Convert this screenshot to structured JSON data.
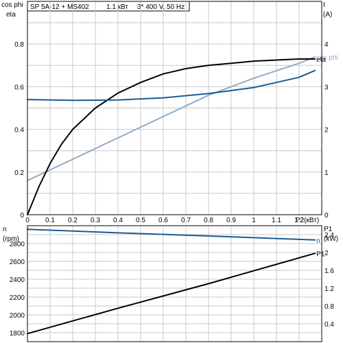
{
  "header": {
    "model": "SP 5A-12 + MS402",
    "power": "1.1 кВт",
    "supply": "3* 400 V, 50 Hz"
  },
  "colors": {
    "cosphi": "#8fabca",
    "current": "#1a5a96",
    "eta": "#000000",
    "speed": "#1a5a96",
    "p1": "#000000"
  },
  "chart_data": [
    {
      "type": "line",
      "title": "",
      "xlabel": "P2(кВт)",
      "ylabel_left": [
        "cos phi",
        "eta"
      ],
      "ylabel_right": [
        "I",
        "(A)"
      ],
      "xlim": [
        0,
        1.3
      ],
      "ylim_left": [
        0,
        1.0
      ],
      "ylim_right": [
        0,
        5
      ],
      "x_ticks": [
        "0",
        "0.1",
        "0.2",
        "0.3",
        "0.4",
        "0.5",
        "0.6",
        "0.7",
        "0.8",
        "0.9",
        "1",
        "1.1",
        "1.2"
      ],
      "y_ticks_left": [
        "0",
        "0.2",
        "0.4",
        "0.6",
        "0.8"
      ],
      "y_ticks_right": [
        "0",
        "1",
        "2",
        "3",
        "4"
      ],
      "grid": true,
      "series": [
        {
          "name": "cos phi",
          "axis": "left",
          "color": "#8fabca",
          "x": [
            0,
            0.2,
            0.4,
            0.6,
            0.8,
            1.0,
            1.2,
            1.27
          ],
          "y": [
            0.16,
            0.26,
            0.36,
            0.46,
            0.56,
            0.64,
            0.71,
            0.74
          ]
        },
        {
          "name": "eta",
          "axis": "left",
          "color": "#000000",
          "x": [
            0,
            0.05,
            0.1,
            0.15,
            0.2,
            0.3,
            0.4,
            0.5,
            0.6,
            0.7,
            0.8,
            0.9,
            1.0,
            1.1,
            1.2,
            1.27
          ],
          "y": [
            0,
            0.13,
            0.24,
            0.33,
            0.4,
            0.5,
            0.57,
            0.62,
            0.66,
            0.685,
            0.7,
            0.71,
            0.72,
            0.725,
            0.73,
            0.73
          ]
        },
        {
          "name": "",
          "axis": "right",
          "color": "#1a5a96",
          "x": [
            0,
            0.2,
            0.4,
            0.6,
            0.8,
            1.0,
            1.2,
            1.27
          ],
          "y": [
            2.7,
            2.68,
            2.69,
            2.74,
            2.84,
            2.98,
            3.22,
            3.38
          ]
        }
      ]
    },
    {
      "type": "line",
      "title": "",
      "xlim": [
        0,
        1.3
      ],
      "ylabel_left": [
        "n",
        "(rpm)"
      ],
      "ylabel_right": [
        "P1",
        "(kW)"
      ],
      "ylim_left": [
        1700,
        3000
      ],
      "ylim_right": [
        0,
        2.6
      ],
      "y_ticks_left": [
        "1800",
        "2000",
        "2200",
        "2400",
        "2600",
        "2800"
      ],
      "y_ticks_right": [
        "0.4",
        "0.8",
        "1.2",
        "1.6",
        "2",
        "2.4"
      ],
      "grid": true,
      "series": [
        {
          "name": "n",
          "axis": "left",
          "color": "#1a5a96",
          "x": [
            0,
            0.4,
            0.8,
            1.27
          ],
          "y": [
            2960,
            2920,
            2885,
            2840
          ]
        },
        {
          "name": "P1",
          "axis": "right",
          "color": "#000000",
          "x": [
            0,
            0.4,
            0.8,
            1.27
          ],
          "y": [
            0.18,
            0.75,
            1.3,
            1.98
          ]
        }
      ]
    }
  ]
}
